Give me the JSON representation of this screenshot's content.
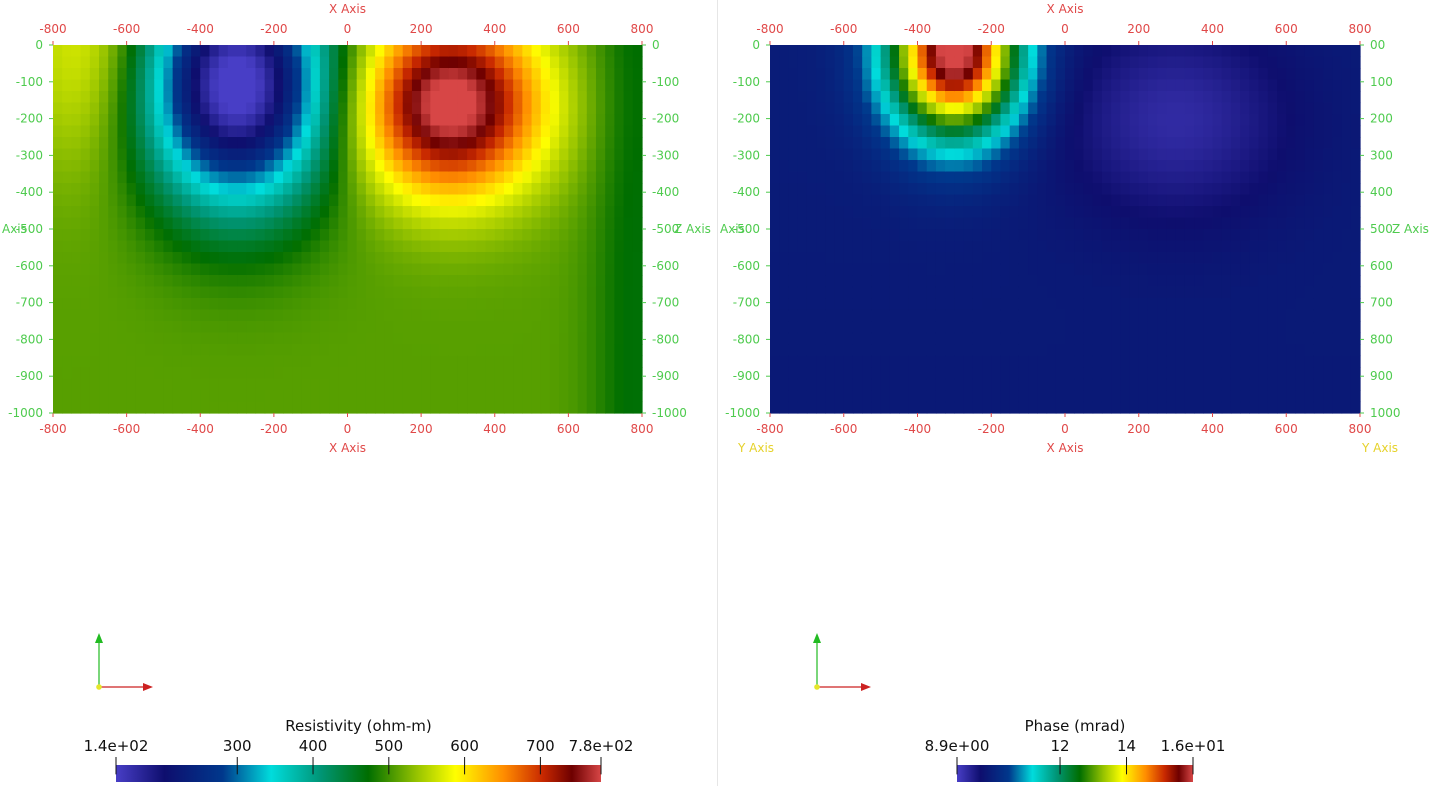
{
  "chart_data": [
    {
      "type": "heatmap",
      "field": "Resistivity",
      "x_axis_label": "X Axis",
      "y_axis_label": "Z Axis",
      "y_axis_label_left": "Axis",
      "xlim": [
        -800,
        800
      ],
      "ylim": [
        -1000,
        0
      ],
      "x_ticks": [
        -800,
        -600,
        -400,
        -200,
        0,
        200,
        400,
        600,
        800
      ],
      "y_ticks": [
        0,
        -100,
        -200,
        -300,
        -400,
        -500,
        -600,
        -700,
        -800,
        -900,
        -1000
      ],
      "anomalies": [
        {
          "kind": "low",
          "x": -300,
          "z": -120,
          "value": 140
        },
        {
          "kind": "high",
          "x": 280,
          "z": -160,
          "value": 780
        }
      ],
      "colorbar": {
        "title": "Resistivity (ohm-m)",
        "min": 140,
        "max": 780,
        "labels": [
          "1.4e+02",
          "300",
          "400",
          "500",
          "600",
          "700",
          "7.8e+02"
        ],
        "label_values": [
          140,
          300,
          400,
          500,
          600,
          700,
          780
        ]
      }
    },
    {
      "type": "heatmap",
      "field": "Phase",
      "x_axis_label": "X Axis",
      "y_axis_label": "Z Axis",
      "y_axis_label_left": "Axis",
      "secondary_axis_label": "Y Axis",
      "xlim": [
        -800,
        800
      ],
      "ylim": [
        -1000,
        0
      ],
      "x_ticks": [
        -800,
        -600,
        -400,
        -200,
        0,
        200,
        400,
        600,
        800
      ],
      "y_ticks": [
        0,
        -100,
        -200,
        -300,
        -400,
        -500,
        -600,
        -700,
        -800,
        -900,
        -1000
      ],
      "y_tick_labels_right": [
        "00",
        "100",
        "200",
        "300",
        "400",
        "500",
        "600",
        "700",
        "800",
        "900",
        "1000"
      ],
      "anomalies": [
        {
          "kind": "high",
          "x": -300,
          "z": -40,
          "value": 16
        },
        {
          "kind": "low",
          "x": 300,
          "z": -180,
          "value": 8.9
        }
      ],
      "colorbar": {
        "title": "Phase (mrad)",
        "min": 8.9,
        "max": 16,
        "labels": [
          "8.9e+00",
          "12",
          "14",
          "1.6e+01"
        ],
        "label_values": [
          8.9,
          12,
          14,
          16
        ]
      }
    }
  ]
}
